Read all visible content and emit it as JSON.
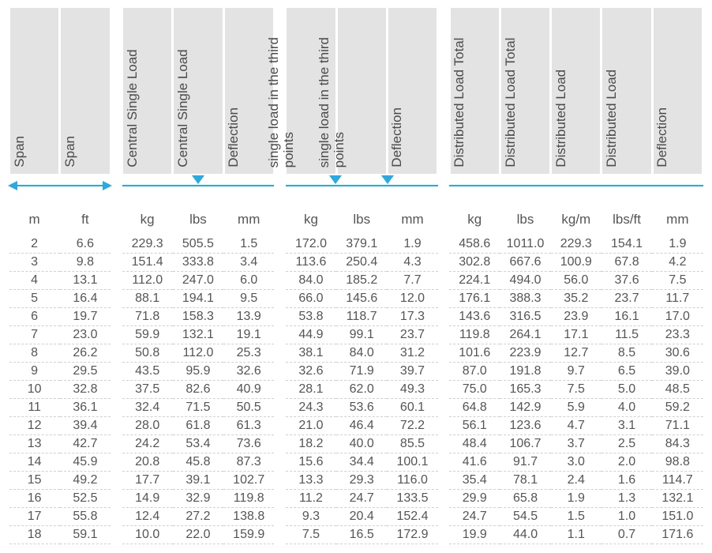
{
  "colors": {
    "header_bg": "#e3e3e3",
    "text": "#555555",
    "accent": "#29aae1",
    "row_divider": "#d0d0d0",
    "background": "#ffffff"
  },
  "fonts": {
    "family": "Arial",
    "header_size_pt": 13,
    "unit_size_pt": 13,
    "cell_size_pt": 12
  },
  "groups": [
    {
      "marker": "double-arrow",
      "columns": [
        {
          "header": "Span",
          "unit": "m"
        },
        {
          "header": "Span",
          "unit": "ft"
        }
      ]
    },
    {
      "marker": "line-with-1-triangle",
      "columns": [
        {
          "header": "Central Single Load",
          "unit": "kg"
        },
        {
          "header": "Central Single Load",
          "unit": "lbs"
        },
        {
          "header": "Deflection",
          "unit": "mm"
        }
      ]
    },
    {
      "marker": "line-with-2-triangles",
      "columns": [
        {
          "header": "single load in the third points",
          "unit": "kg"
        },
        {
          "header": "single load in the third points",
          "unit": "lbs"
        },
        {
          "header": "Deflection",
          "unit": "mm"
        }
      ]
    },
    {
      "marker": "line",
      "columns": [
        {
          "header": "Distributed Load Total",
          "unit": "kg"
        },
        {
          "header": "Distributed Load Total",
          "unit": "lbs"
        },
        {
          "header": "Distributed Load",
          "unit": "kg/m"
        },
        {
          "header": "Distributed Load",
          "unit": "lbs/ft"
        },
        {
          "header": "Deflection",
          "unit": "mm"
        }
      ]
    }
  ],
  "rows": [
    [
      "2",
      "6.6",
      "229.3",
      "505.5",
      "1.5",
      "172.0",
      "379.1",
      "1.9",
      "458.6",
      "1011.0",
      "229.3",
      "154.1",
      "1.9"
    ],
    [
      "3",
      "9.8",
      "151.4",
      "333.8",
      "3.4",
      "113.6",
      "250.4",
      "4.3",
      "302.8",
      "667.6",
      "100.9",
      "67.8",
      "4.2"
    ],
    [
      "4",
      "13.1",
      "112.0",
      "247.0",
      "6.0",
      "84.0",
      "185.2",
      "7.7",
      "224.1",
      "494.0",
      "56.0",
      "37.6",
      "7.5"
    ],
    [
      "5",
      "16.4",
      "88.1",
      "194.1",
      "9.5",
      "66.0",
      "145.6",
      "12.0",
      "176.1",
      "388.3",
      "35.2",
      "23.7",
      "11.7"
    ],
    [
      "6",
      "19.7",
      "71.8",
      "158.3",
      "13.9",
      "53.8",
      "118.7",
      "17.3",
      "143.6",
      "316.5",
      "23.9",
      "16.1",
      "17.0"
    ],
    [
      "7",
      "23.0",
      "59.9",
      "132.1",
      "19.1",
      "44.9",
      "99.1",
      "23.7",
      "119.8",
      "264.1",
      "17.1",
      "11.5",
      "23.3"
    ],
    [
      "8",
      "26.2",
      "50.8",
      "112.0",
      "25.3",
      "38.1",
      "84.0",
      "31.2",
      "101.6",
      "223.9",
      "12.7",
      "8.5",
      "30.6"
    ],
    [
      "9",
      "29.5",
      "43.5",
      "95.9",
      "32.6",
      "32.6",
      "71.9",
      "39.7",
      "87.0",
      "191.8",
      "9.7",
      "6.5",
      "39.0"
    ],
    [
      "10",
      "32.8",
      "37.5",
      "82.6",
      "40.9",
      "28.1",
      "62.0",
      "49.3",
      "75.0",
      "165.3",
      "7.5",
      "5.0",
      "48.5"
    ],
    [
      "11",
      "36.1",
      "32.4",
      "71.5",
      "50.5",
      "24.3",
      "53.6",
      "60.1",
      "64.8",
      "142.9",
      "5.9",
      "4.0",
      "59.2"
    ],
    [
      "12",
      "39.4",
      "28.0",
      "61.8",
      "61.3",
      "21.0",
      "46.4",
      "72.2",
      "56.1",
      "123.6",
      "4.7",
      "3.1",
      "71.1"
    ],
    [
      "13",
      "42.7",
      "24.2",
      "53.4",
      "73.6",
      "18.2",
      "40.0",
      "85.5",
      "48.4",
      "106.7",
      "3.7",
      "2.5",
      "84.3"
    ],
    [
      "14",
      "45.9",
      "20.8",
      "45.8",
      "87.3",
      "15.6",
      "34.4",
      "100.1",
      "41.6",
      "91.7",
      "3.0",
      "2.0",
      "98.8"
    ],
    [
      "15",
      "49.2",
      "17.7",
      "39.1",
      "102.7",
      "13.3",
      "29.3",
      "116.0",
      "35.4",
      "78.1",
      "2.4",
      "1.6",
      "114.7"
    ],
    [
      "16",
      "52.5",
      "14.9",
      "32.9",
      "119.8",
      "11.2",
      "24.7",
      "133.5",
      "29.9",
      "65.8",
      "1.9",
      "1.3",
      "132.1"
    ],
    [
      "17",
      "55.8",
      "12.4",
      "27.2",
      "138.8",
      "9.3",
      "20.4",
      "152.4",
      "24.7",
      "54.5",
      "1.5",
      "1.0",
      "151.0"
    ],
    [
      "18",
      "59.1",
      "10.0",
      "22.0",
      "159.9",
      "7.5",
      "16.5",
      "172.9",
      "19.9",
      "44.0",
      "1.1",
      "0.7",
      "171.6"
    ]
  ]
}
